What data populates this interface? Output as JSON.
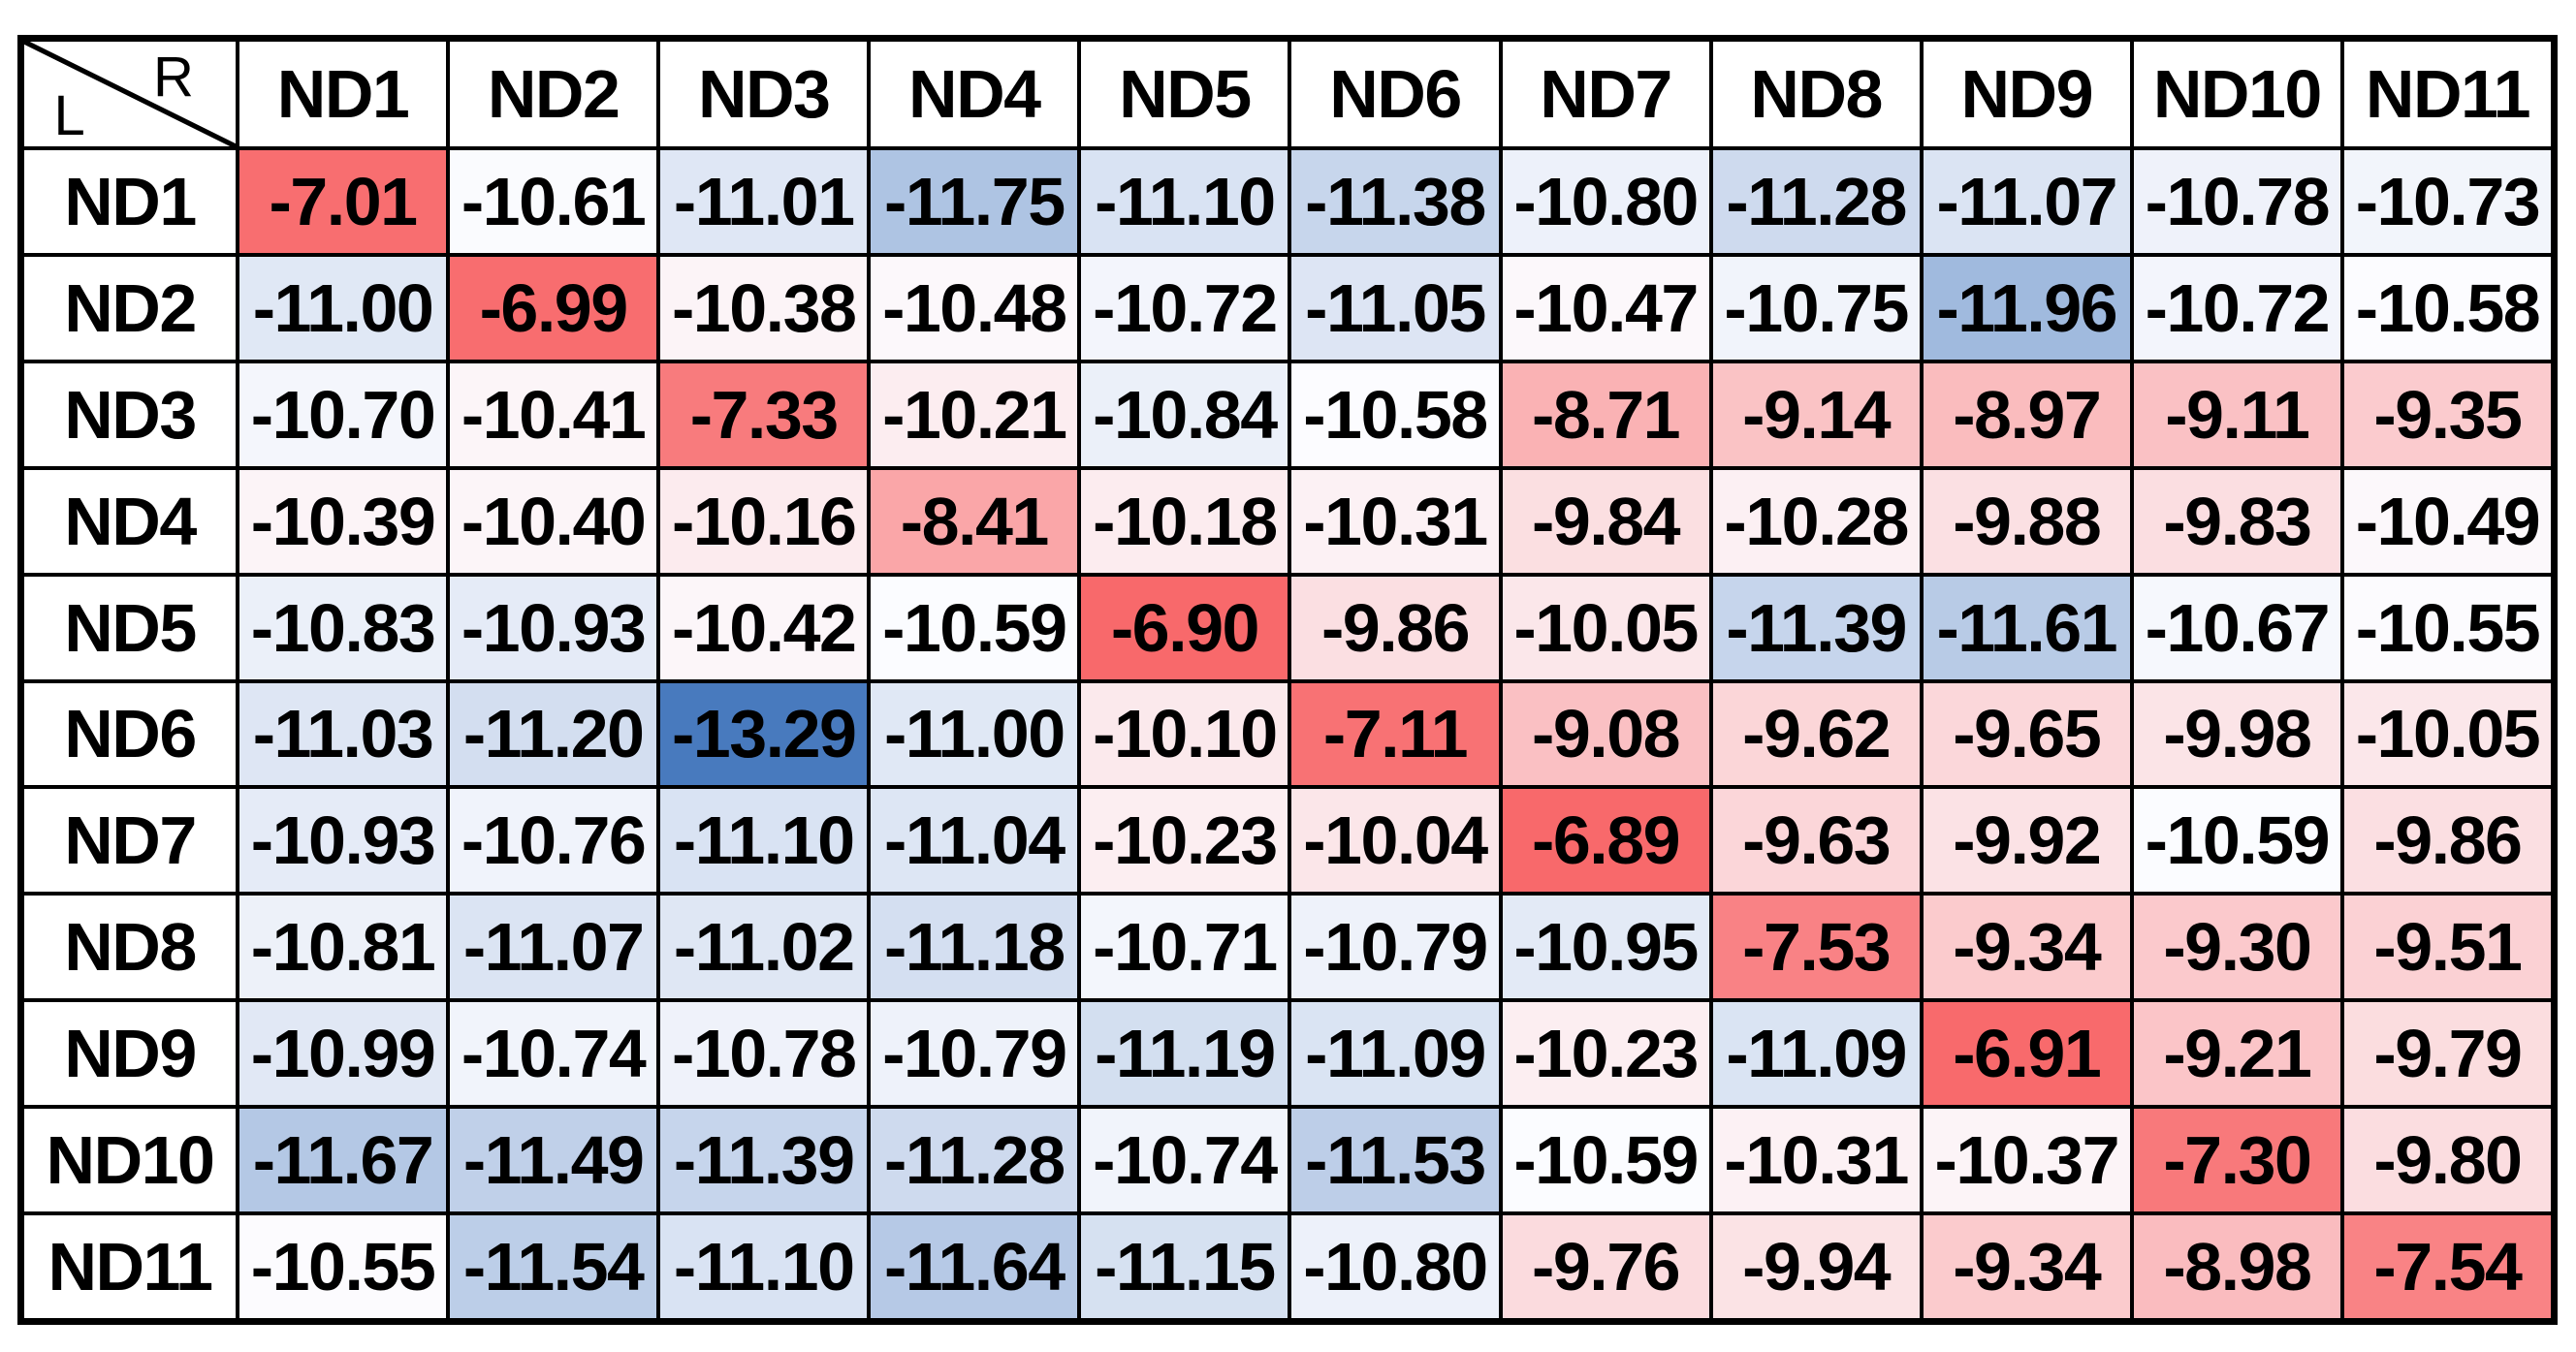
{
  "chart_data": {
    "type": "heatmap",
    "corner": {
      "top_right_label": "R",
      "bottom_left_label": "L"
    },
    "x": [
      "ND1",
      "ND2",
      "ND3",
      "ND4",
      "ND5",
      "ND6",
      "ND7",
      "ND8",
      "ND9",
      "ND10",
      "ND11"
    ],
    "y": [
      "ND1",
      "ND2",
      "ND3",
      "ND4",
      "ND5",
      "ND6",
      "ND7",
      "ND8",
      "ND9",
      "ND10",
      "ND11"
    ],
    "values": [
      [
        -7.01,
        -10.61,
        -11.01,
        -11.75,
        -11.1,
        -11.38,
        -10.8,
        -11.28,
        -11.07,
        -10.78,
        -10.73
      ],
      [
        -11.0,
        -6.99,
        -10.38,
        -10.48,
        -10.72,
        -11.05,
        -10.47,
        -10.75,
        -11.96,
        -10.72,
        -10.58
      ],
      [
        -10.7,
        -10.41,
        -7.33,
        -10.21,
        -10.84,
        -10.58,
        -8.71,
        -9.14,
        -8.97,
        -9.11,
        -9.35
      ],
      [
        -10.39,
        -10.4,
        -10.16,
        -8.41,
        -10.18,
        -10.31,
        -9.84,
        -10.28,
        -9.88,
        -9.83,
        -10.49
      ],
      [
        -10.83,
        -10.93,
        -10.42,
        -10.59,
        -6.9,
        -9.86,
        -10.05,
        -11.39,
        -11.61,
        -10.67,
        -10.55
      ],
      [
        -11.03,
        -11.2,
        -13.29,
        -11.0,
        -10.1,
        -7.11,
        -9.08,
        -9.62,
        -9.65,
        -9.98,
        -10.05
      ],
      [
        -10.93,
        -10.76,
        -11.1,
        -11.04,
        -10.23,
        -10.04,
        -6.89,
        -9.63,
        -9.92,
        -10.59,
        -9.86
      ],
      [
        -10.81,
        -11.07,
        -11.02,
        -11.18,
        -10.71,
        -10.79,
        -10.95,
        -7.53,
        -9.34,
        -9.3,
        -9.51
      ],
      [
        -10.99,
        -10.74,
        -10.78,
        -10.79,
        -11.19,
        -11.09,
        -10.23,
        -11.09,
        -6.91,
        -9.21,
        -9.79
      ],
      [
        -11.67,
        -11.49,
        -11.39,
        -11.28,
        -10.74,
        -11.53,
        -10.59,
        -10.31,
        -10.37,
        -7.3,
        -9.8
      ],
      [
        -10.55,
        -11.54,
        -11.1,
        -11.64,
        -11.15,
        -10.8,
        -9.76,
        -9.94,
        -9.34,
        -8.98,
        -7.54
      ]
    ],
    "decimals": 2,
    "value_range": [
      -13.29,
      -6.89
    ],
    "title": "",
    "xlabel": "R",
    "ylabel": "L",
    "legend": "none",
    "grid": "on",
    "colorscale": {
      "min_color": "#487ABE",
      "mid_color": "#FCFCFF",
      "max_color": "#F8696B",
      "mid_rule": "50th-percentile"
    }
  },
  "colors": {
    "border": "#000000",
    "text": "#000000",
    "header_bg": "#FFFFFF",
    "page_bg": "#FFFFFF"
  }
}
